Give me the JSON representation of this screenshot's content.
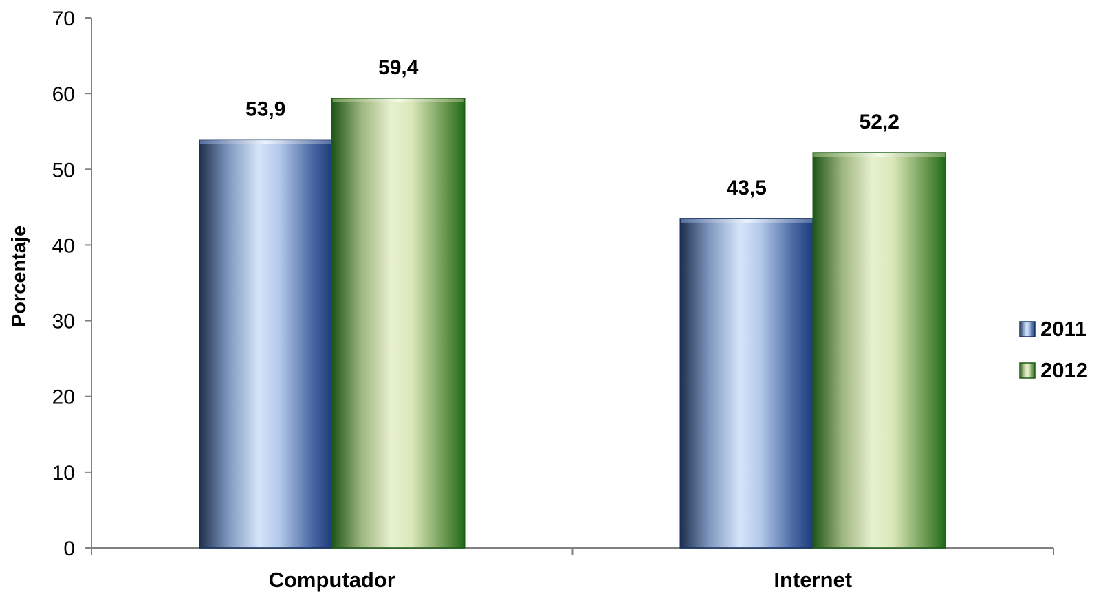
{
  "chart_data": {
    "type": "bar",
    "title": "",
    "xlabel": "",
    "ylabel": "Porcentaje",
    "ylim": [
      0,
      70
    ],
    "yticks": [
      0,
      10,
      20,
      30,
      40,
      50,
      60,
      70
    ],
    "categories": [
      "Computador",
      "Internet"
    ],
    "series": [
      {
        "name": "2011",
        "values": [
          53.9,
          43.5
        ],
        "labels": [
          "53,9",
          "43,5"
        ],
        "color": "#1f3f7a"
      },
      {
        "name": "2012",
        "values": [
          59.4,
          52.2
        ],
        "labels": [
          "59,4",
          "52,2"
        ],
        "color": "#2e7a1f"
      }
    ],
    "grid": false,
    "legend": "right"
  }
}
